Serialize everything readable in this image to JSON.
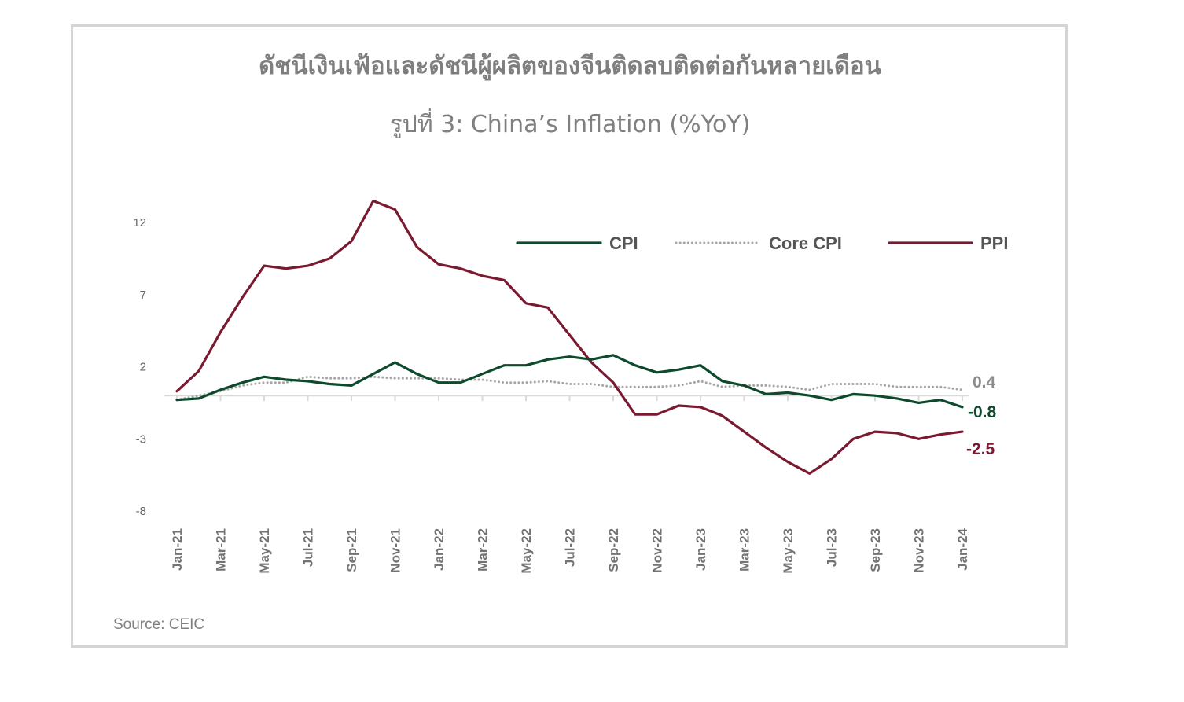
{
  "title": "ดัชนีเงินเฟ้อและดัชนีผู้ผลิตของจีนติดลบติดต่อกันหลายเดือน",
  "subtitle": "รูปที่ 3: China’s Inflation (%YoY)",
  "source": "Source: CEIC",
  "colors": {
    "cpi": "#0d4a2c",
    "core_cpi": "#a6a6a6",
    "ppi": "#7a1a30",
    "axis": "#d9d9d9"
  },
  "chart_data": {
    "type": "line",
    "title": "รูปที่ 3: China’s Inflation (%YoY)",
    "xlabel": "",
    "ylabel": "",
    "ylim": [
      -8,
      12
    ],
    "yticks": [
      "12",
      "7",
      "2",
      "-3",
      "-8"
    ],
    "x": [
      "Jan-21",
      "Feb-21",
      "Mar-21",
      "Apr-21",
      "May-21",
      "Jun-21",
      "Jul-21",
      "Aug-21",
      "Sep-21",
      "Oct-21",
      "Nov-21",
      "Dec-21",
      "Jan-22",
      "Feb-22",
      "Mar-22",
      "Apr-22",
      "May-22",
      "Jun-22",
      "Jul-22",
      "Aug-22",
      "Sep-22",
      "Oct-22",
      "Nov-22",
      "Dec-22",
      "Jan-23",
      "Feb-23",
      "Mar-23",
      "Apr-23",
      "May-23",
      "Jun-23",
      "Jul-23",
      "Aug-23",
      "Sep-23",
      "Oct-23",
      "Nov-23",
      "Dec-23",
      "Jan-24"
    ],
    "xtick_labels": [
      "Jan-21",
      "Mar-21",
      "May-21",
      "Jul-21",
      "Sep-21",
      "Nov-21",
      "Jan-22",
      "Mar-22",
      "May-22",
      "Jul-22",
      "Sep-22",
      "Nov-22",
      "Jan-23",
      "Mar-23",
      "May-23",
      "Jul-23",
      "Sep-23",
      "Nov-23",
      "Jan-24"
    ],
    "legend_position": "top-right",
    "grid": false,
    "series": [
      {
        "name": "CPI",
        "style": "solid",
        "end_label": "-0.8",
        "values": [
          -0.3,
          -0.2,
          0.4,
          0.9,
          1.3,
          1.1,
          1.0,
          0.8,
          0.7,
          1.5,
          2.3,
          1.5,
          0.9,
          0.9,
          1.5,
          2.1,
          2.1,
          2.5,
          2.7,
          2.5,
          2.8,
          2.1,
          1.6,
          1.8,
          2.1,
          1.0,
          0.7,
          0.1,
          0.2,
          0.0,
          -0.3,
          0.1,
          0.0,
          -0.2,
          -0.5,
          -0.3,
          -0.8
        ]
      },
      {
        "name": "Core CPI",
        "style": "dotted",
        "end_label": "0.4",
        "values": [
          -0.3,
          0.0,
          0.3,
          0.7,
          0.9,
          0.9,
          1.3,
          1.2,
          1.2,
          1.3,
          1.2,
          1.2,
          1.2,
          1.1,
          1.1,
          0.9,
          0.9,
          1.0,
          0.8,
          0.8,
          0.6,
          0.6,
          0.6,
          0.7,
          1.0,
          0.6,
          0.7,
          0.7,
          0.6,
          0.4,
          0.8,
          0.8,
          0.8,
          0.6,
          0.6,
          0.6,
          0.4
        ]
      },
      {
        "name": "PPI",
        "style": "solid",
        "end_label": "-2.5",
        "values": [
          0.3,
          1.7,
          4.4,
          6.8,
          9.0,
          8.8,
          9.0,
          9.5,
          10.7,
          13.5,
          12.9,
          10.3,
          9.1,
          8.8,
          8.3,
          8.0,
          6.4,
          6.1,
          4.2,
          2.3,
          0.9,
          -1.3,
          -1.3,
          -0.7,
          -0.8,
          -1.4,
          -2.5,
          -3.6,
          -4.6,
          -5.4,
          -4.4,
          -3.0,
          -2.5,
          -2.6,
          -3.0,
          -2.7,
          -2.5
        ]
      }
    ]
  }
}
